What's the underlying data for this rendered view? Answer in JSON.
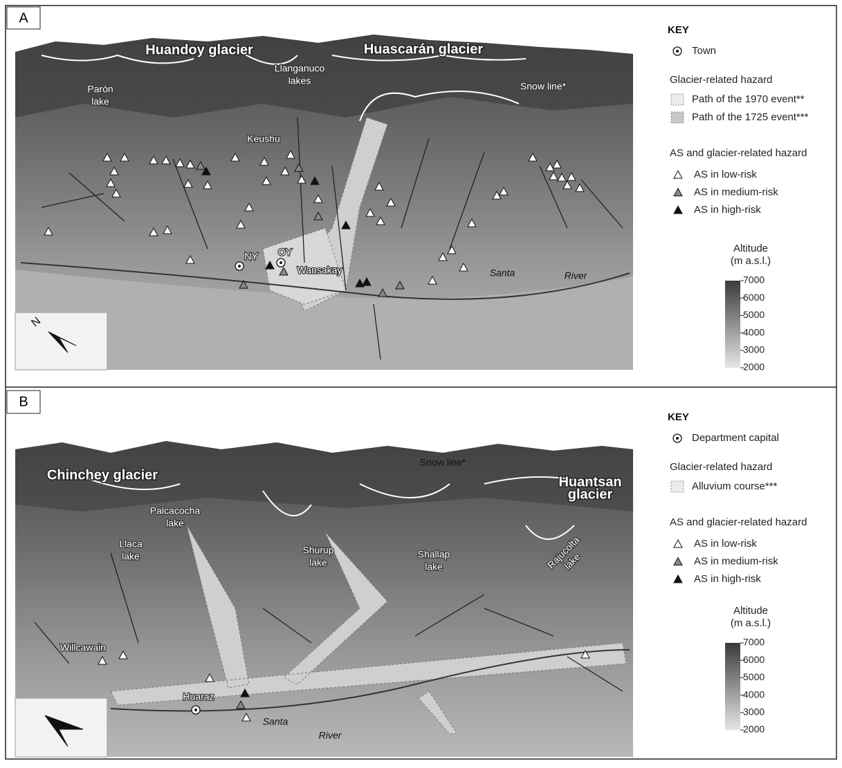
{
  "panels": [
    {
      "label": "A",
      "places": [
        [
          "Huandoy glacier"
        ],
        [
          "Huascarán glacier"
        ],
        [
          "Llanganuco",
          "lakes"
        ],
        [
          "Parón",
          "lake"
        ],
        [
          "Snow line*"
        ],
        [
          "Keushu"
        ],
        [
          "NY"
        ],
        [
          "OY"
        ],
        [
          "Wansakay"
        ],
        [
          "Santa"
        ],
        [
          "River"
        ]
      ],
      "key": {
        "title": "KEY",
        "town": "Town",
        "hazard_title": "Glacier-related hazard",
        "hazard_items": [
          "Path of the 1970 event**",
          "Path of the 1725 event***"
        ],
        "as_title": "AS and glacier-related hazard",
        "as_items": [
          "AS in low-risk",
          "AS in medium-risk",
          "AS in high-risk"
        ],
        "altitude_title": "Altitude",
        "altitude_unit": "(m a.s.l.)",
        "altitude_ticks": [
          7000,
          6000,
          5000,
          4000,
          3000,
          2000
        ]
      }
    },
    {
      "label": "B",
      "places": [
        [
          "Chinchey glacier"
        ],
        [
          "Huantsan",
          "glacier"
        ],
        [
          "Palcacocha",
          "lake"
        ],
        [
          "Llaca",
          "lake"
        ],
        [
          "Shurup",
          "lake"
        ],
        [
          "Shallap",
          "lake"
        ],
        [
          "Rajucolta",
          "lake"
        ],
        [
          "Snow line*"
        ],
        [
          "Willcawain"
        ],
        [
          "Huaraz"
        ],
        [
          "Santa"
        ],
        [
          "River"
        ]
      ],
      "key": {
        "title": "KEY",
        "town": "Department capital",
        "hazard_title": "Glacier-related hazard",
        "hazard_items": [
          "Alluvium course***"
        ],
        "as_title": "AS and glacier-related hazard",
        "as_items": [
          "AS in low-risk",
          "AS in medium-risk",
          "AS in high-risk"
        ],
        "altitude_title": "Altitude",
        "altitude_unit": "(m a.s.l.)",
        "altitude_ticks": [
          7000,
          6000,
          5000,
          4000,
          3000,
          2000
        ]
      }
    }
  ]
}
